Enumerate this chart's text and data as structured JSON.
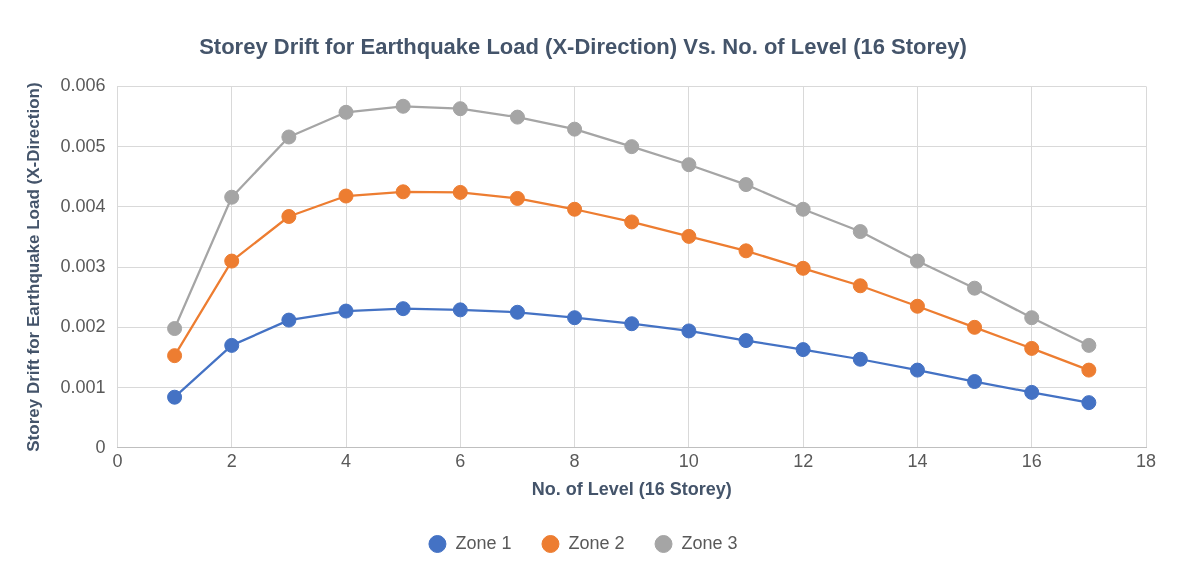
{
  "chart_data": {
    "type": "line",
    "title": "Storey Drift for Earthquake Load (X-Direction) Vs. No. of Level (16 Storey)",
    "xlabel": "No. of Level (16 Storey)",
    "ylabel": "Storey Drift for Earthquake Load (X-Direction)",
    "x": [
      1,
      2,
      3,
      4,
      5,
      6,
      7,
      8,
      9,
      10,
      11,
      12,
      13,
      14,
      15,
      16,
      17
    ],
    "series": [
      {
        "name": "Zone 1",
        "color": "#4472c4",
        "values": [
          0.00084,
          0.0017,
          0.00212,
          0.00227,
          0.00231,
          0.00229,
          0.00225,
          0.00216,
          0.00206,
          0.00194,
          0.00178,
          0.00163,
          0.00147,
          0.00129,
          0.0011,
          0.00092,
          0.00075
        ]
      },
      {
        "name": "Zone 2",
        "color": "#ed7d31",
        "values": [
          0.00153,
          0.0031,
          0.00384,
          0.00418,
          0.00425,
          0.00424,
          0.00414,
          0.00396,
          0.00375,
          0.00351,
          0.00327,
          0.00298,
          0.00269,
          0.00235,
          0.002,
          0.00165,
          0.00129
        ]
      },
      {
        "name": "Zone 3",
        "color": "#a5a5a5",
        "values": [
          0.00198,
          0.00416,
          0.00516,
          0.00557,
          0.00567,
          0.00563,
          0.00549,
          0.00529,
          0.005,
          0.0047,
          0.00437,
          0.00396,
          0.00359,
          0.0031,
          0.00265,
          0.00216,
          0.0017
        ]
      }
    ],
    "xlim": [
      0,
      18
    ],
    "xticks": [
      0,
      2,
      4,
      6,
      8,
      10,
      12,
      14,
      16,
      18
    ],
    "ylim": [
      0,
      0.006
    ],
    "yticks": [
      0,
      0.001,
      0.002,
      0.003,
      0.004,
      0.005,
      0.006
    ],
    "grid": true,
    "legend": "bottom",
    "marker": "circle",
    "line_style": "solid"
  }
}
